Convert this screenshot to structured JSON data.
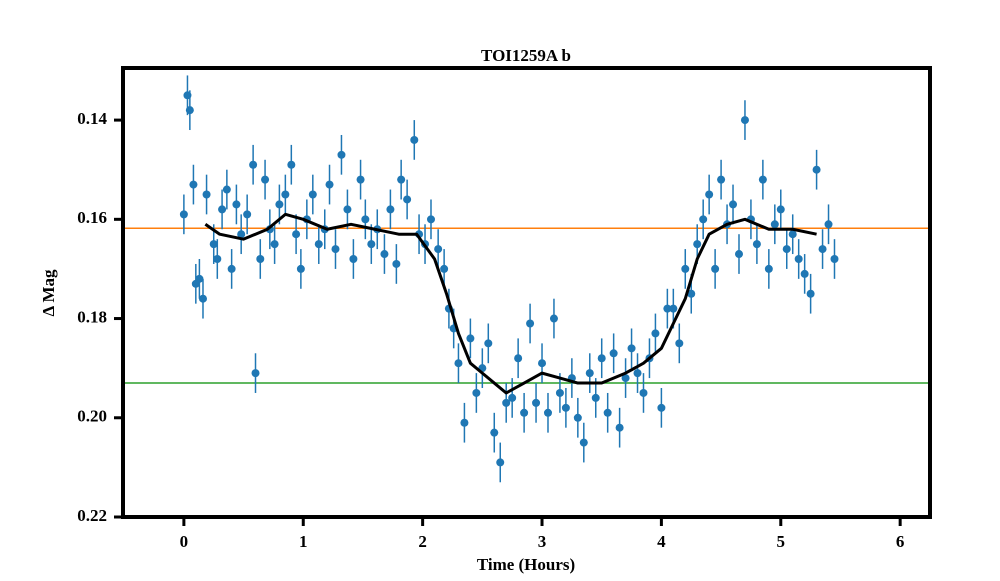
{
  "chart_data": {
    "type": "scatter",
    "title": "TOI1259A b",
    "xlabel": "Time (Hours)",
    "ylabel": "Δ Mag",
    "xlim": [
      -0.51,
      6.25
    ],
    "ylim": [
      0.22,
      0.1295
    ],
    "xticks": [
      0,
      1,
      2,
      3,
      4,
      5,
      6
    ],
    "yticks": [
      0.14,
      0.16,
      0.18,
      {
        "value": 0.2,
        "label": "0.20"
      },
      0.22
    ],
    "series": [
      {
        "type": "errorbar",
        "color": "#1f77b4",
        "x": [
          0.0,
          0.03,
          0.05,
          0.08,
          0.1,
          0.13,
          0.16,
          0.19,
          0.25,
          0.28,
          0.32,
          0.36,
          0.4,
          0.44,
          0.48,
          0.53,
          0.58,
          0.6,
          0.64,
          0.68,
          0.72,
          0.76,
          0.8,
          0.85,
          0.9,
          0.94,
          0.98,
          1.03,
          1.08,
          1.13,
          1.18,
          1.22,
          1.27,
          1.32,
          1.37,
          1.42,
          1.48,
          1.52,
          1.57,
          1.62,
          1.68,
          1.73,
          1.78,
          1.82,
          1.87,
          1.93,
          1.97,
          2.02,
          2.07,
          2.13,
          2.18,
          2.22,
          2.26,
          2.3,
          2.35,
          2.4,
          2.45,
          2.5,
          2.55,
          2.6,
          2.65,
          2.7,
          2.75,
          2.8,
          2.85,
          2.9,
          2.95,
          3.0,
          3.05,
          3.1,
          3.15,
          3.2,
          3.25,
          3.3,
          3.35,
          3.4,
          3.45,
          3.5,
          3.55,
          3.6,
          3.65,
          3.7,
          3.75,
          3.8,
          3.85,
          3.9,
          3.95,
          4.0,
          4.05,
          4.1,
          4.15,
          4.2,
          4.25,
          4.3,
          4.35,
          4.4,
          4.45,
          4.5,
          4.55,
          4.6,
          4.65,
          4.7,
          4.75,
          4.8,
          4.85,
          4.9,
          4.95,
          5.0,
          5.05,
          5.1,
          5.15,
          5.2,
          5.25,
          5.3,
          5.35,
          5.4,
          5.45
        ],
        "values": [
          0.159,
          0.135,
          0.138,
          0.153,
          0.173,
          0.172,
          0.176,
          0.155,
          0.165,
          0.168,
          0.158,
          0.154,
          0.17,
          0.157,
          0.163,
          0.159,
          0.149,
          0.191,
          0.168,
          0.152,
          0.162,
          0.165,
          0.157,
          0.155,
          0.149,
          0.163,
          0.17,
          0.16,
          0.155,
          0.165,
          0.162,
          0.153,
          0.166,
          0.147,
          0.158,
          0.168,
          0.152,
          0.16,
          0.165,
          0.162,
          0.167,
          0.158,
          0.169,
          0.152,
          0.156,
          0.144,
          0.163,
          0.165,
          0.16,
          0.166,
          0.17,
          0.178,
          0.182,
          0.189,
          0.201,
          0.184,
          0.195,
          0.19,
          0.185,
          0.203,
          0.209,
          0.197,
          0.196,
          0.188,
          0.199,
          0.181,
          0.197,
          0.189,
          0.199,
          0.18,
          0.195,
          0.198,
          0.192,
          0.2,
          0.205,
          0.191,
          0.196,
          0.188,
          0.199,
          0.187,
          0.202,
          0.192,
          0.186,
          0.191,
          0.195,
          0.188,
          0.183,
          0.198,
          0.178,
          0.178,
          0.185,
          0.17,
          0.175,
          0.165,
          0.16,
          0.155,
          0.17,
          0.152,
          0.161,
          0.157,
          0.167,
          0.14,
          0.16,
          0.165,
          0.152,
          0.17,
          0.161,
          0.158,
          0.166,
          0.163,
          0.168,
          0.171,
          0.175,
          0.15,
          0.166,
          0.161,
          0.168
        ],
        "errors": [
          0.004,
          0.004,
          0.004,
          0.004,
          0.004,
          0.004,
          0.004,
          0.004,
          0.004,
          0.004,
          0.004,
          0.004,
          0.004,
          0.004,
          0.004,
          0.004,
          0.004,
          0.004,
          0.004,
          0.004,
          0.004,
          0.004,
          0.004,
          0.004,
          0.004,
          0.004,
          0.004,
          0.004,
          0.004,
          0.004,
          0.004,
          0.004,
          0.004,
          0.004,
          0.004,
          0.004,
          0.004,
          0.004,
          0.004,
          0.004,
          0.004,
          0.004,
          0.004,
          0.004,
          0.004,
          0.004,
          0.004,
          0.004,
          0.004,
          0.004,
          0.004,
          0.004,
          0.004,
          0.004,
          0.004,
          0.004,
          0.004,
          0.004,
          0.004,
          0.004,
          0.004,
          0.004,
          0.004,
          0.004,
          0.004,
          0.004,
          0.004,
          0.004,
          0.004,
          0.004,
          0.004,
          0.004,
          0.004,
          0.004,
          0.004,
          0.004,
          0.004,
          0.004,
          0.004,
          0.004,
          0.004,
          0.004,
          0.004,
          0.004,
          0.004,
          0.004,
          0.004,
          0.004,
          0.004,
          0.004,
          0.004,
          0.004,
          0.004,
          0.004,
          0.004,
          0.004,
          0.004,
          0.004,
          0.004,
          0.004,
          0.004,
          0.004,
          0.004,
          0.004,
          0.004,
          0.004,
          0.004,
          0.004,
          0.004,
          0.004,
          0.004,
          0.004,
          0.004,
          0.004,
          0.004,
          0.004,
          0.004
        ]
      },
      {
        "type": "line",
        "color": "#000000",
        "x": [
          0.18,
          0.3,
          0.5,
          0.7,
          0.85,
          1.0,
          1.2,
          1.4,
          1.6,
          1.8,
          1.95,
          2.1,
          2.2,
          2.3,
          2.4,
          2.5,
          2.6,
          2.7,
          2.85,
          3.0,
          3.15,
          3.3,
          3.5,
          3.7,
          3.85,
          4.0,
          4.1,
          4.2,
          4.3,
          4.4,
          4.55,
          4.7,
          4.9,
          5.1,
          5.3
        ],
        "values": [
          0.161,
          0.163,
          0.164,
          0.162,
          0.159,
          0.16,
          0.162,
          0.161,
          0.162,
          0.163,
          0.163,
          0.168,
          0.175,
          0.183,
          0.189,
          0.191,
          0.193,
          0.195,
          0.193,
          0.191,
          0.192,
          0.193,
          0.193,
          0.191,
          0.189,
          0.186,
          0.181,
          0.176,
          0.168,
          0.163,
          0.161,
          0.16,
          0.162,
          0.162,
          0.163
        ]
      }
    ],
    "hlines": [
      {
        "value": 0.1618,
        "color": "#ff7f0e"
      },
      {
        "value": 0.193,
        "color": "#2ca02c"
      }
    ]
  }
}
